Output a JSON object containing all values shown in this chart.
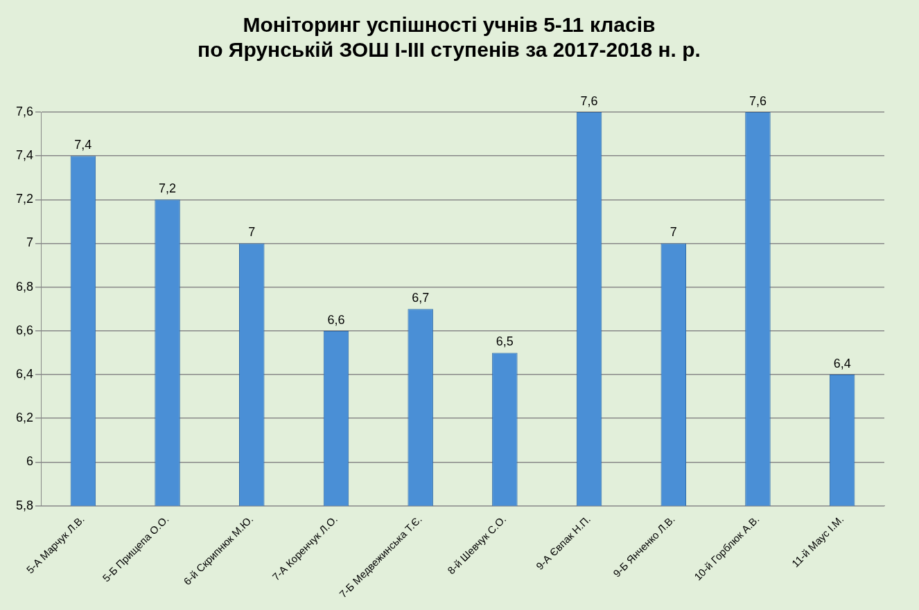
{
  "chart_data": {
    "type": "bar",
    "title": "Моніторинг успішності учнів 5-11 класів\nпо Ярунській ЗОШ І-ІІІ ступенів за 2017-2018 н. р.",
    "categories": [
      "5-А Марчук Л.В.",
      "5-Б Прищепа О.О.",
      "6-й Скрипнюк М.Ю.",
      "7-А Коренчук Л.О.",
      "7-Б Медвежинська Т.Є.",
      "8-й Шевчук С.О.",
      "9-А Євпак Н.П.",
      "9-Б Янченко Л.В.",
      "10-й Горблюк А.В.",
      "11-й Маус І.М."
    ],
    "values": [
      7.4,
      7.2,
      7,
      6.6,
      6.7,
      6.5,
      7.6,
      7,
      7.6,
      6.4
    ],
    "value_labels": [
      "7,4",
      "7,2",
      "7",
      "6,6",
      "6,7",
      "6,5",
      "7,6",
      "7",
      "7,6",
      "6,4"
    ],
    "color": "#4a8fd6",
    "ylim": [
      5.8,
      7.6
    ],
    "yticks": [
      {
        "value": 5.8,
        "label": "5,8"
      },
      {
        "value": 6,
        "label": "6"
      },
      {
        "value": 6.2,
        "label": "6,2"
      },
      {
        "value": 6.4,
        "label": "6,4"
      },
      {
        "value": 6.6,
        "label": "6,6"
      },
      {
        "value": 6.8,
        "label": "6,8"
      },
      {
        "value": 7,
        "label": "7"
      },
      {
        "value": 7.2,
        "label": "7,2"
      },
      {
        "value": 7.4,
        "label": "7,4"
      },
      {
        "value": 7.6,
        "label": "7,6"
      }
    ],
    "grid": "y",
    "legend": false
  }
}
